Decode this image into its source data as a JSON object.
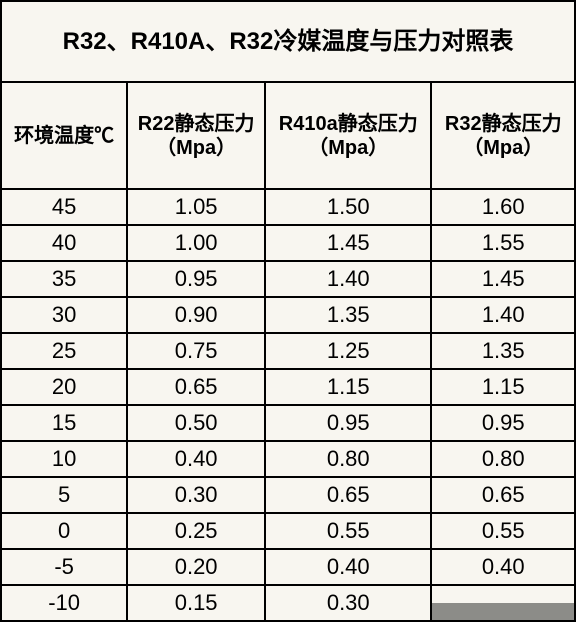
{
  "title": "R32、R410A、R32冷媒温度与压力对照表",
  "columns": [
    "环境温度℃",
    "R22静态压力（Mpa）",
    "R410a静态压力（Mpa）",
    "R32静态压力（Mpa）"
  ],
  "rows": [
    {
      "temp": "45",
      "r22": "1.05",
      "r410a": "1.50",
      "r32": "1.60"
    },
    {
      "temp": "40",
      "r22": "1.00",
      "r410a": "1.45",
      "r32": "1.55"
    },
    {
      "temp": "35",
      "r22": "0.95",
      "r410a": "1.40",
      "r32": "1.45"
    },
    {
      "temp": "30",
      "r22": "0.90",
      "r410a": "1.35",
      "r32": "1.40"
    },
    {
      "temp": "25",
      "r22": "0.75",
      "r410a": "1.25",
      "r32": "1.35"
    },
    {
      "temp": "20",
      "r22": "0.65",
      "r410a": "1.15",
      "r32": "1.15"
    },
    {
      "temp": "15",
      "r22": "0.50",
      "r410a": "0.95",
      "r32": "0.95"
    },
    {
      "temp": "10",
      "r22": "0.40",
      "r410a": "0.80",
      "r32": "0.80"
    },
    {
      "temp": "5",
      "r22": "0.30",
      "r410a": "0.65",
      "r32": "0.65"
    },
    {
      "temp": "0",
      "r22": "0.25",
      "r410a": "0.55",
      "r32": "0.55"
    },
    {
      "temp": "-5",
      "r22": "0.20",
      "r410a": "0.40",
      "r32": "0.40"
    },
    {
      "temp": "-10",
      "r22": "0.15",
      "r410a": "0.30",
      "r32": ""
    }
  ],
  "style": {
    "border_color": "#000000",
    "background_color": "#f8f6f0",
    "title_fontsize": 24,
    "header_fontsize": 20,
    "cell_fontsize": 22,
    "font_family": "SimHei",
    "col_widths_pct": [
      22,
      24,
      29,
      25
    ]
  }
}
